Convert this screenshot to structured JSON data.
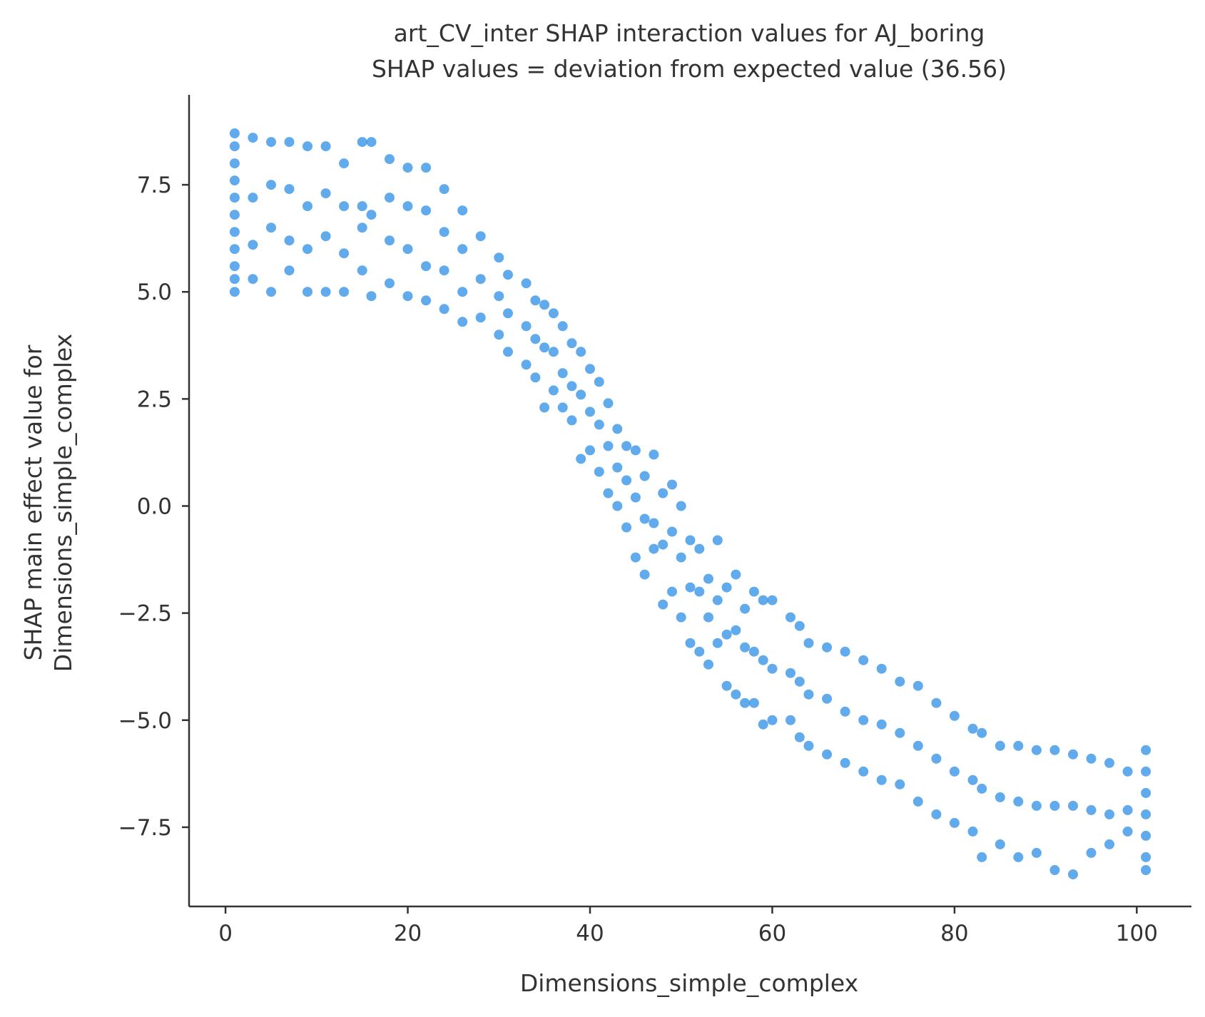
{
  "chart_data": {
    "type": "scatter",
    "title": "art_CV_inter SHAP interaction values for AJ_boring",
    "subtitle": "SHAP values = deviation from expected value (36.56)",
    "xlabel": "Dimensions_simple_complex",
    "ylabel_line1": "SHAP main effect value for",
    "ylabel_line2": "Dimensions_simple_complex",
    "xlim": [
      -4,
      106
    ],
    "ylim": [
      -9.35,
      9.6
    ],
    "x_ticks": [
      0,
      20,
      40,
      60,
      80,
      100
    ],
    "x_tick_labels": [
      "0",
      "20",
      "40",
      "60",
      "80",
      "100"
    ],
    "y_ticks": [
      7.5,
      5.0,
      2.5,
      0.0,
      -2.5,
      -5.0,
      -7.5
    ],
    "y_tick_labels": [
      "7.5",
      "5.0",
      "2.5",
      "0.0",
      "−2.5",
      "−5.0",
      "−7.5"
    ],
    "grid": false,
    "point_color": "#1e88e5",
    "point_opacity": 0.7,
    "series": [
      {
        "points": [
          [
            1,
            8.7
          ],
          [
            1,
            8.4
          ],
          [
            1,
            8.0
          ],
          [
            1,
            7.6
          ],
          [
            1,
            7.2
          ],
          [
            1,
            6.8
          ],
          [
            1,
            6.4
          ],
          [
            1,
            6.0
          ],
          [
            1,
            5.6
          ],
          [
            1,
            5.3
          ],
          [
            1,
            5.0
          ],
          [
            3,
            8.6
          ],
          [
            3,
            7.2
          ],
          [
            3,
            6.1
          ],
          [
            3,
            5.3
          ],
          [
            5,
            8.5
          ],
          [
            5,
            7.5
          ],
          [
            5,
            6.5
          ],
          [
            5,
            5.0
          ],
          [
            7,
            8.5
          ],
          [
            7,
            7.4
          ],
          [
            7,
            6.2
          ],
          [
            7,
            5.5
          ],
          [
            9,
            8.4
          ],
          [
            9,
            7.0
          ],
          [
            9,
            6.0
          ],
          [
            9,
            5.0
          ],
          [
            11,
            8.4
          ],
          [
            11,
            7.3
          ],
          [
            11,
            6.3
          ],
          [
            11,
            5.0
          ],
          [
            13,
            8.0
          ],
          [
            13,
            7.0
          ],
          [
            13,
            5.9
          ],
          [
            13,
            5.0
          ],
          [
            15,
            8.5
          ],
          [
            15,
            7.0
          ],
          [
            15,
            6.5
          ],
          [
            15,
            5.5
          ],
          [
            16,
            8.5
          ],
          [
            16,
            6.8
          ],
          [
            16,
            4.9
          ],
          [
            18,
            8.1
          ],
          [
            18,
            7.2
          ],
          [
            18,
            6.2
          ],
          [
            18,
            5.2
          ],
          [
            20,
            7.9
          ],
          [
            20,
            7.0
          ],
          [
            20,
            6.0
          ],
          [
            20,
            4.9
          ],
          [
            22,
            7.9
          ],
          [
            22,
            6.9
          ],
          [
            22,
            5.6
          ],
          [
            22,
            4.8
          ],
          [
            24,
            7.4
          ],
          [
            24,
            6.4
          ],
          [
            24,
            5.5
          ],
          [
            24,
            4.6
          ],
          [
            26,
            6.9
          ],
          [
            26,
            6.0
          ],
          [
            26,
            5.0
          ],
          [
            26,
            4.3
          ],
          [
            28,
            6.3
          ],
          [
            28,
            5.3
          ],
          [
            28,
            4.4
          ],
          [
            30,
            5.8
          ],
          [
            30,
            4.9
          ],
          [
            30,
            4.0
          ],
          [
            31,
            5.4
          ],
          [
            31,
            4.5
          ],
          [
            31,
            3.6
          ],
          [
            33,
            5.2
          ],
          [
            33,
            4.2
          ],
          [
            33,
            3.3
          ],
          [
            34,
            4.8
          ],
          [
            34,
            3.9
          ],
          [
            34,
            3.0
          ],
          [
            35,
            4.7
          ],
          [
            35,
            3.7
          ],
          [
            35,
            2.3
          ],
          [
            36,
            4.5
          ],
          [
            36,
            3.6
          ],
          [
            36,
            2.7
          ],
          [
            37,
            4.2
          ],
          [
            37,
            3.1
          ],
          [
            37,
            2.3
          ],
          [
            38,
            3.8
          ],
          [
            38,
            2.8
          ],
          [
            38,
            2.0
          ],
          [
            39,
            3.6
          ],
          [
            39,
            2.6
          ],
          [
            39,
            1.1
          ],
          [
            40,
            3.2
          ],
          [
            40,
            2.2
          ],
          [
            40,
            1.3
          ],
          [
            41,
            2.9
          ],
          [
            41,
            1.9
          ],
          [
            41,
            0.8
          ],
          [
            42,
            2.4
          ],
          [
            42,
            1.4
          ],
          [
            42,
            0.3
          ],
          [
            43,
            1.8
          ],
          [
            43,
            0.9
          ],
          [
            43,
            0.0
          ],
          [
            44,
            1.4
          ],
          [
            44,
            0.6
          ],
          [
            44,
            -0.5
          ],
          [
            45,
            1.3
          ],
          [
            45,
            0.2
          ],
          [
            45,
            -1.2
          ],
          [
            46,
            0.7
          ],
          [
            46,
            -0.3
          ],
          [
            46,
            -1.6
          ],
          [
            47,
            1.2
          ],
          [
            47,
            -0.4
          ],
          [
            47,
            -1.0
          ],
          [
            48,
            0.3
          ],
          [
            48,
            -0.9
          ],
          [
            48,
            -2.3
          ],
          [
            49,
            0.5
          ],
          [
            49,
            -0.6
          ],
          [
            49,
            -2.0
          ],
          [
            50,
            0.0
          ],
          [
            50,
            -1.2
          ],
          [
            50,
            -2.6
          ],
          [
            51,
            -0.8
          ],
          [
            51,
            -1.9
          ],
          [
            51,
            -3.2
          ],
          [
            52,
            -1.0
          ],
          [
            52,
            -2.0
          ],
          [
            52,
            -3.4
          ],
          [
            53,
            -1.7
          ],
          [
            53,
            -2.6
          ],
          [
            53,
            -3.7
          ],
          [
            54,
            -0.8
          ],
          [
            54,
            -2.2
          ],
          [
            54,
            -3.2
          ],
          [
            55,
            -1.9
          ],
          [
            55,
            -3.0
          ],
          [
            55,
            -4.2
          ],
          [
            56,
            -1.6
          ],
          [
            56,
            -2.9
          ],
          [
            56,
            -4.4
          ],
          [
            57,
            -2.4
          ],
          [
            57,
            -3.3
          ],
          [
            57,
            -4.6
          ],
          [
            58,
            -2.0
          ],
          [
            58,
            -3.4
          ],
          [
            58,
            -4.6
          ],
          [
            59,
            -2.2
          ],
          [
            59,
            -3.6
          ],
          [
            59,
            -5.1
          ],
          [
            60,
            -2.2
          ],
          [
            60,
            -3.8
          ],
          [
            60,
            -5.0
          ],
          [
            62,
            -2.6
          ],
          [
            62,
            -3.9
          ],
          [
            62,
            -5.0
          ],
          [
            63,
            -2.8
          ],
          [
            63,
            -4.1
          ],
          [
            63,
            -5.4
          ],
          [
            64,
            -3.2
          ],
          [
            64,
            -4.4
          ],
          [
            64,
            -5.6
          ],
          [
            66,
            -3.3
          ],
          [
            66,
            -4.5
          ],
          [
            66,
            -5.8
          ],
          [
            68,
            -3.4
          ],
          [
            68,
            -4.8
          ],
          [
            68,
            -6.0
          ],
          [
            70,
            -3.6
          ],
          [
            70,
            -5.0
          ],
          [
            70,
            -6.2
          ],
          [
            72,
            -3.8
          ],
          [
            72,
            -5.1
          ],
          [
            72,
            -6.4
          ],
          [
            74,
            -4.1
          ],
          [
            74,
            -5.3
          ],
          [
            74,
            -6.5
          ],
          [
            76,
            -4.2
          ],
          [
            76,
            -5.6
          ],
          [
            76,
            -6.9
          ],
          [
            78,
            -4.6
          ],
          [
            78,
            -5.9
          ],
          [
            78,
            -7.2
          ],
          [
            80,
            -4.9
          ],
          [
            80,
            -6.2
          ],
          [
            80,
            -7.4
          ],
          [
            82,
            -5.2
          ],
          [
            82,
            -6.4
          ],
          [
            82,
            -7.6
          ],
          [
            83,
            -5.3
          ],
          [
            83,
            -6.6
          ],
          [
            83,
            -8.2
          ],
          [
            85,
            -5.6
          ],
          [
            85,
            -6.8
          ],
          [
            85,
            -7.9
          ],
          [
            87,
            -5.6
          ],
          [
            87,
            -6.9
          ],
          [
            87,
            -8.2
          ],
          [
            89,
            -5.7
          ],
          [
            89,
            -7.0
          ],
          [
            89,
            -8.1
          ],
          [
            91,
            -5.7
          ],
          [
            91,
            -7.0
          ],
          [
            91,
            -8.5
          ],
          [
            93,
            -5.8
          ],
          [
            93,
            -7.0
          ],
          [
            93,
            -8.6
          ],
          [
            95,
            -5.9
          ],
          [
            95,
            -7.1
          ],
          [
            95,
            -8.1
          ],
          [
            97,
            -6.0
          ],
          [
            97,
            -7.2
          ],
          [
            97,
            -7.9
          ],
          [
            99,
            -6.2
          ],
          [
            99,
            -7.1
          ],
          [
            99,
            -7.6
          ],
          [
            101,
            -5.7
          ],
          [
            101,
            -6.2
          ],
          [
            101,
            -6.7
          ],
          [
            101,
            -7.2
          ],
          [
            101,
            -7.7
          ],
          [
            101,
            -8.2
          ],
          [
            101,
            -8.5
          ]
        ]
      }
    ]
  }
}
